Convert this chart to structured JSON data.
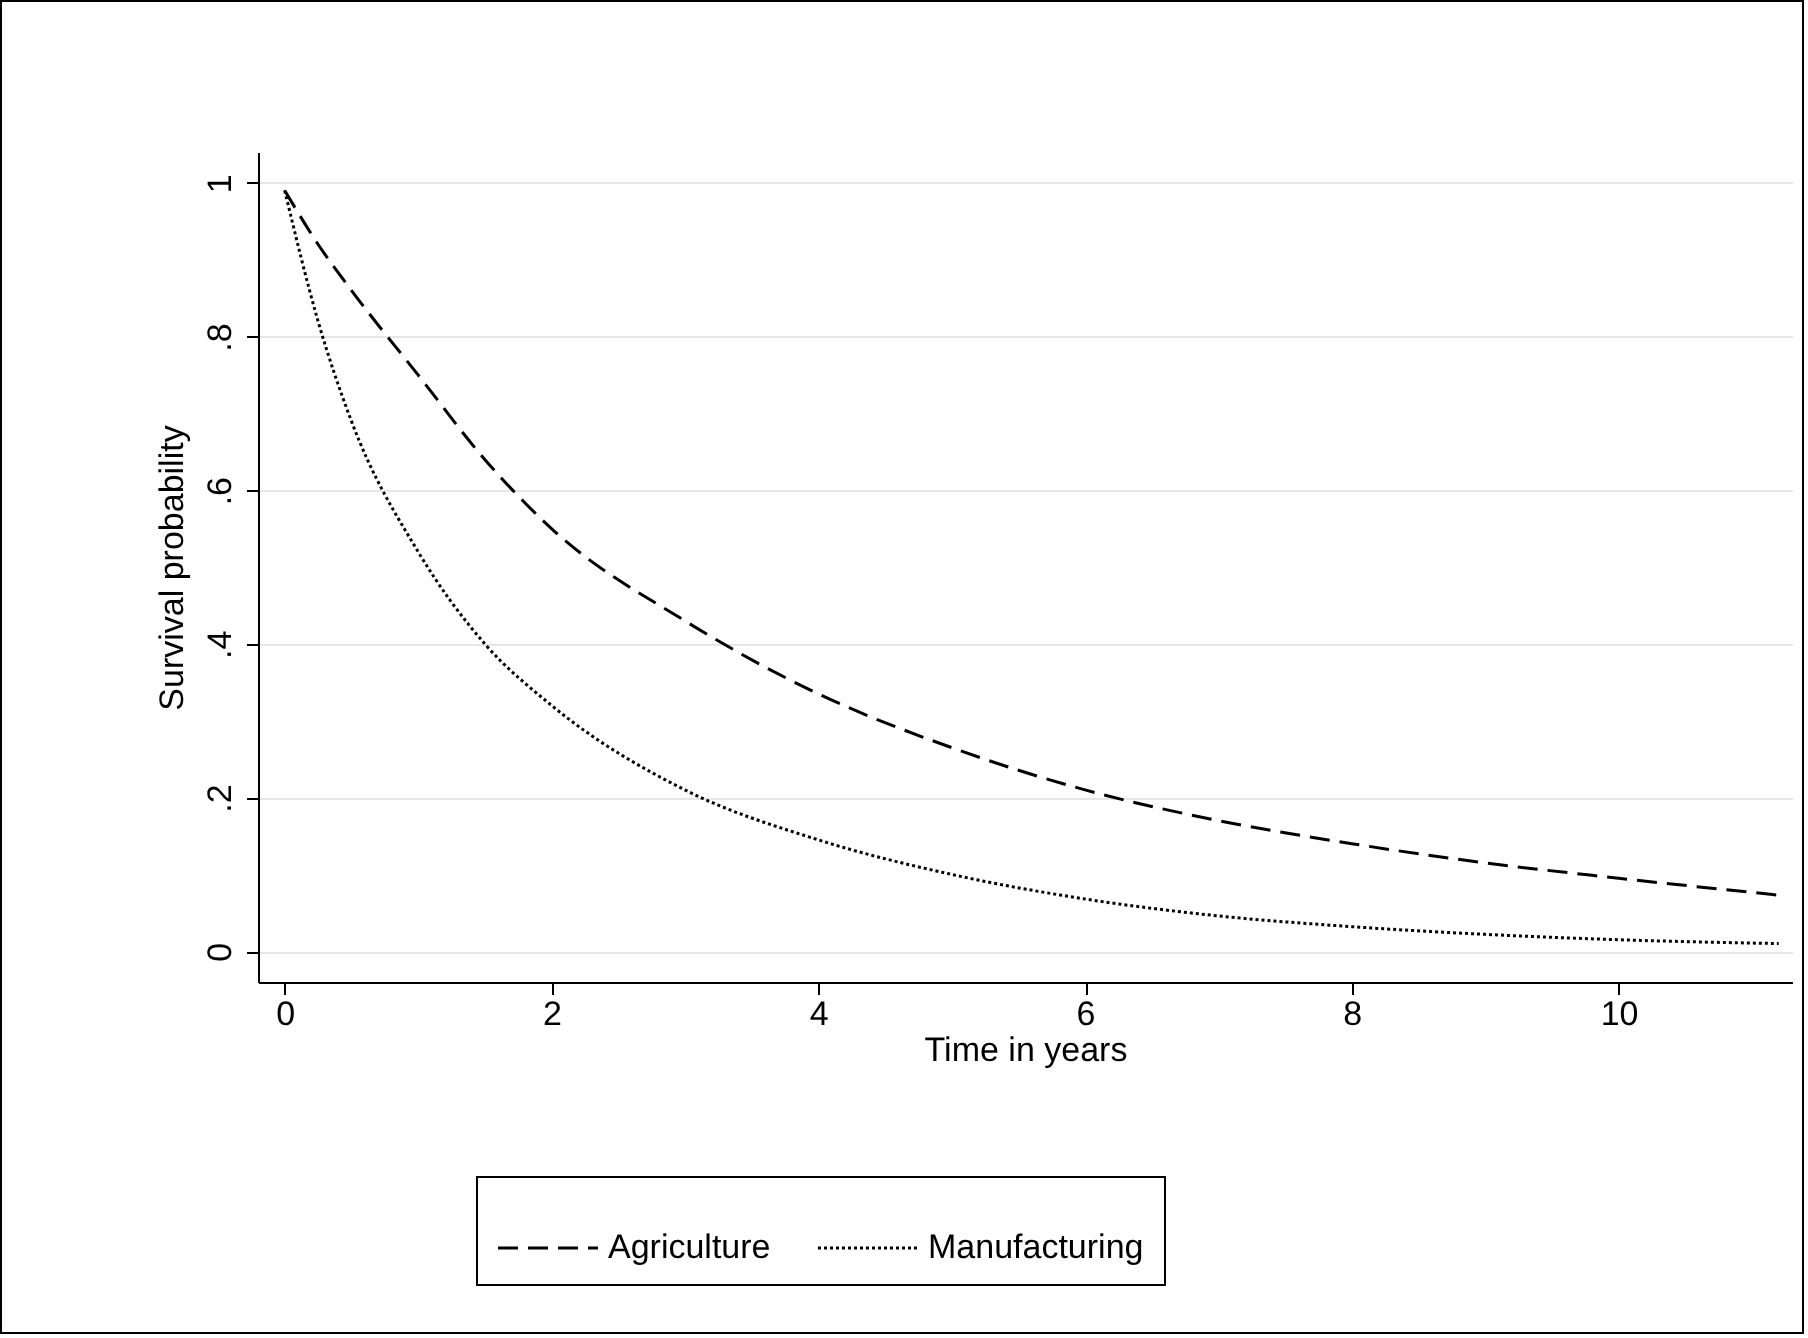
{
  "chart_data": {
    "type": "line",
    "xlabel": "Time in years",
    "ylabel": "Survival probability",
    "xlim": [
      -0.2,
      11.3
    ],
    "xticks": [
      0,
      2,
      4,
      6,
      8,
      10
    ],
    "ylim": [
      -0.04,
      1.04
    ],
    "yticks": [
      {
        "value": 0,
        "label": "0"
      },
      {
        "value": 0.2,
        "label": ".2"
      },
      {
        "value": 0.4,
        "label": ".4"
      },
      {
        "value": 0.6,
        "label": ".6"
      },
      {
        "value": 0.8,
        "label": ".8"
      },
      {
        "value": 1,
        "label": "1"
      }
    ],
    "grid": "y",
    "legend": "bottom",
    "x": [
      0,
      0.25,
      0.5,
      1,
      1.5,
      2,
      3,
      4,
      5,
      6,
      7,
      8,
      9,
      10,
      11.2
    ],
    "series": [
      {
        "name": "Agriculture",
        "color": "#000000",
        "line_style": "dashed",
        "values": [
          0.99,
          0.92,
          0.86,
          0.75,
          0.64,
          0.55,
          0.43,
          0.335,
          0.265,
          0.21,
          0.17,
          0.14,
          0.115,
          0.095,
          0.073
        ]
      },
      {
        "name": "Manufacturing",
        "color": "#000000",
        "line_style": "dotted",
        "values": [
          0.99,
          0.82,
          0.69,
          0.52,
          0.4,
          0.32,
          0.21,
          0.145,
          0.1,
          0.068,
          0.046,
          0.032,
          0.022,
          0.015,
          0.01
        ]
      }
    ]
  }
}
